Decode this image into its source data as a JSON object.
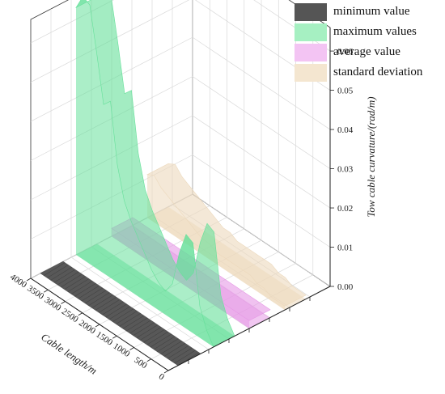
{
  "chart_data": {
    "type": "area",
    "projection": "3d",
    "x_axis": {
      "label": "Cable length/m",
      "ticks": [
        0,
        500,
        1000,
        1500,
        2000,
        2500,
        3000,
        3500,
        4000
      ],
      "range": [
        0,
        4000
      ]
    },
    "z_axis": {
      "label": "Tow cable curvature/(rad/m)",
      "ticks": [
        "0.00",
        "0.01",
        "0.02",
        "0.03",
        "0.04",
        "0.05",
        "0.06"
      ],
      "range": [
        0,
        0.066
      ]
    },
    "grid": true,
    "legend_position": "top-right",
    "x": [
      0,
      200,
      400,
      600,
      800,
      1000,
      1200,
      1400,
      1600,
      1800,
      2000,
      2200,
      2400,
      2600,
      2800,
      3000,
      3200,
      3400,
      3600,
      3800,
      4000
    ],
    "series": [
      {
        "name": "minimum value",
        "color": "#555555",
        "values": [
          0,
          0,
          0,
          0,
          0,
          0,
          0,
          0,
          0,
          0,
          0,
          0,
          0,
          0,
          0,
          0,
          0,
          0,
          0,
          0,
          0
        ]
      },
      {
        "name": "maximum values",
        "color": "#66e09a",
        "values": [
          0,
          0.003,
          0.008,
          0.023,
          0.024,
          0.018,
          0.009,
          0.006,
          0.007,
          0.009,
          0.012,
          0.015,
          0.018,
          0.022,
          0.03,
          0.045,
          0.043,
          0.055,
          0.066,
          0.067,
          0.063
        ]
      },
      {
        "name": "average value",
        "color": "#e699e6",
        "values": [
          0.002,
          0.002,
          0.002,
          0.002,
          0.002,
          0.002,
          0.002,
          0.002,
          0.002,
          0.002,
          0.002,
          0.002,
          0.002,
          0.002,
          0.002,
          0.002,
          0.002,
          0.002,
          0.002,
          0.002,
          0.002
        ]
      },
      {
        "name": "standard deviation",
        "color": "#ecd9bc",
        "values": [
          0.001,
          0.001,
          0.001,
          0.002,
          0.002,
          0.003,
          0.003,
          0.003,
          0.003,
          0.003,
          0.003,
          0.004,
          0.004,
          0.005,
          0.006,
          0.007,
          0.008,
          0.009,
          0.01,
          0.012,
          0.011
        ]
      }
    ]
  }
}
